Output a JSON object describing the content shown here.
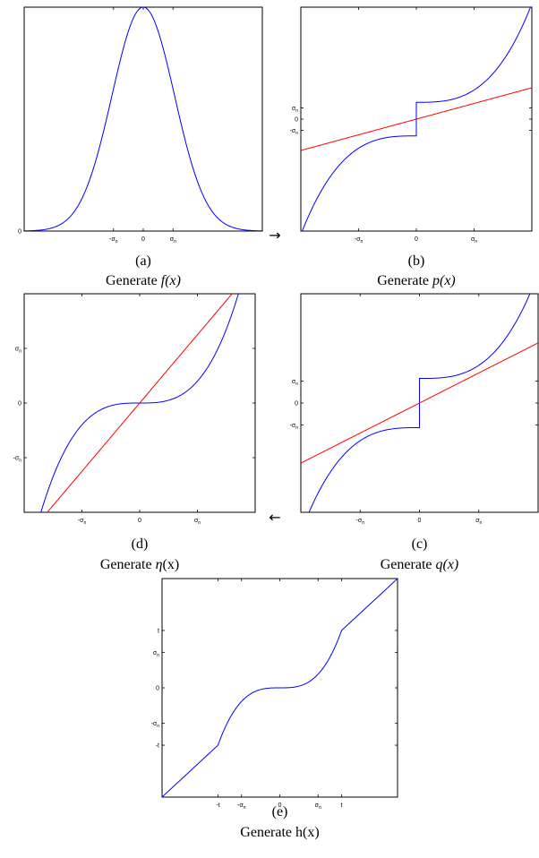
{
  "chart_data": [
    {
      "id": "a",
      "type": "line",
      "letter": "(a)",
      "caption_prefix": "Generate ",
      "caption_func": "f(x)",
      "caption_italic": true,
      "xlim": [
        -4,
        4
      ],
      "ylim": [
        0,
        1
      ],
      "xticks": [
        {
          "v": -1,
          "t": "-σ",
          "s": "n"
        },
        {
          "v": 0,
          "t": "0",
          "s": ""
        },
        {
          "v": 1,
          "t": "σ",
          "s": "n"
        }
      ],
      "yticks": [
        {
          "v": 0,
          "t": "0",
          "s": ""
        }
      ],
      "series": [
        {
          "color": "#0000ff",
          "fn": "gauss"
        }
      ]
    },
    {
      "id": "b",
      "type": "line",
      "letter": "(b)",
      "caption_prefix": "Generate ",
      "caption_func": "p(x)",
      "caption_italic": true,
      "xlim": [
        -4,
        4
      ],
      "ylim": [
        -4,
        4
      ],
      "xticks": [
        {
          "v": -2,
          "t": "-σ",
          "s": "n"
        },
        {
          "v": 0,
          "t": "0",
          "s": ""
        },
        {
          "v": 2,
          "t": "σ",
          "s": "n"
        }
      ],
      "yticks": [
        {
          "v": 0.4,
          "t": "σ",
          "s": "n"
        },
        {
          "v": 0,
          "t": "0",
          "s": ""
        },
        {
          "v": -0.4,
          "t": "-σ",
          "s": "n"
        }
      ],
      "series": [
        {
          "color": "#0000ff",
          "fn": "p"
        },
        {
          "color": "#ff0000",
          "fn": "line_b"
        }
      ]
    },
    {
      "id": "c",
      "type": "line",
      "letter": "(c)",
      "caption_prefix": "Generate ",
      "caption_func": "q(x)",
      "caption_italic": true,
      "xlim": [
        -4,
        4
      ],
      "ylim": [
        -4,
        4
      ],
      "xticks": [
        {
          "v": -2,
          "t": "-σ",
          "s": "n"
        },
        {
          "v": 0,
          "t": "0",
          "s": ""
        },
        {
          "v": 2,
          "t": "σ",
          "s": "n"
        }
      ],
      "yticks": [
        {
          "v": 0.8,
          "t": "σ",
          "s": "n"
        },
        {
          "v": 0,
          "t": "0",
          "s": ""
        },
        {
          "v": -0.8,
          "t": "-σ",
          "s": "n"
        }
      ],
      "series": [
        {
          "color": "#0000ff",
          "fn": "q"
        },
        {
          "color": "#ff0000",
          "fn": "line_c"
        }
      ]
    },
    {
      "id": "d",
      "type": "line",
      "letter": "(d)",
      "caption_prefix": "Generate ",
      "caption_func": "η",
      "caption_suffix": "(x)",
      "caption_italic": true,
      "xlim": [
        -4,
        4
      ],
      "ylim": [
        -4,
        4
      ],
      "xticks": [
        {
          "v": -2,
          "t": "-σ",
          "s": "n"
        },
        {
          "v": 0,
          "t": "0",
          "s": ""
        },
        {
          "v": 2,
          "t": "σ",
          "s": "n"
        }
      ],
      "yticks": [
        {
          "v": 2,
          "t": "σ",
          "s": "n"
        },
        {
          "v": 0,
          "t": "0",
          "s": ""
        },
        {
          "v": -2,
          "t": "-σ",
          "s": "n"
        }
      ],
      "series": [
        {
          "color": "#0000ff",
          "fn": "eta"
        },
        {
          "color": "#ff0000",
          "fn": "line_d"
        }
      ]
    },
    {
      "id": "e",
      "type": "line",
      "letter": "(e)",
      "caption_prefix": "Generate ",
      "caption_func": "h(x)",
      "caption_italic": false,
      "xlim": [
        -4,
        4
      ],
      "ylim": [
        -4,
        4
      ],
      "xticks": [
        {
          "v": -2.1,
          "t": "-t",
          "s": ""
        },
        {
          "v": -1.3,
          "t": "-σ",
          "s": "n"
        },
        {
          "v": 0,
          "t": "0",
          "s": ""
        },
        {
          "v": 1.3,
          "t": "σ",
          "s": "n"
        },
        {
          "v": 2.1,
          "t": "t",
          "s": ""
        }
      ],
      "yticks": [
        {
          "v": 2.1,
          "t": "t",
          "s": ""
        },
        {
          "v": 1.3,
          "t": "σ",
          "s": "n"
        },
        {
          "v": 0,
          "t": "0",
          "s": ""
        },
        {
          "v": -1.3,
          "t": "-σ",
          "s": "n"
        },
        {
          "v": -2.1,
          "t": "-t",
          "s": ""
        }
      ],
      "series": [
        {
          "color": "#0000ff",
          "fn": "h"
        }
      ]
    }
  ],
  "arrows": {
    "right": "→",
    "left": "←"
  }
}
